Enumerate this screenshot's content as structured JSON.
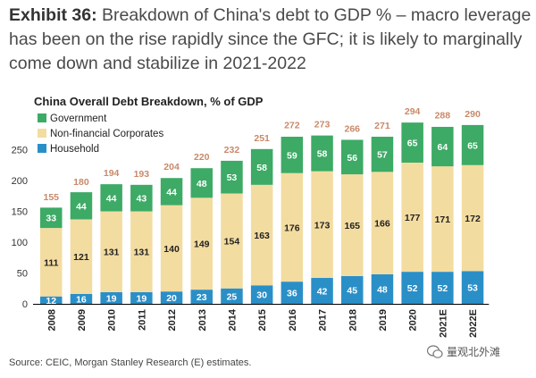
{
  "heading": {
    "label": "Exhibit 36:",
    "line1": "Breakdown of China's debt to GDP % – macro leverage",
    "line2": "has been on the rise rapidly since the GFC; it is likely to marginally",
    "line3": "come down and stabilize in 2021-2022"
  },
  "source": "Source: CEIC, Morgan Stanley Research (E) estimates.",
  "watermark": "量观北外滩",
  "chart_data": {
    "type": "bar",
    "stacked": true,
    "title": "China Overall Debt Breakdown, % of GDP",
    "categories": [
      "2008",
      "2009",
      "2010",
      "2011",
      "2012",
      "2013",
      "2014",
      "2015",
      "2016",
      "2017",
      "2018",
      "2019",
      "2020",
      "2021E",
      "2022E"
    ],
    "series": [
      {
        "name": "Household",
        "color": "#2a8fc7",
        "values": [
          12,
          16,
          19,
          19,
          20,
          23,
          25,
          30,
          36,
          42,
          45,
          48,
          52,
          52,
          53
        ]
      },
      {
        "name": "Non-financial Corporates",
        "color": "#f3dca0",
        "values": [
          111,
          121,
          131,
          131,
          140,
          149,
          154,
          163,
          176,
          173,
          165,
          166,
          177,
          171,
          172
        ]
      },
      {
        "name": "Government",
        "color": "#3daa66",
        "values": [
          33,
          44,
          44,
          43,
          44,
          48,
          53,
          58,
          59,
          58,
          56,
          57,
          65,
          64,
          65
        ]
      }
    ],
    "totals": [
      155,
      180,
      194,
      193,
      204,
      220,
      232,
      251,
      272,
      273,
      266,
      271,
      294,
      288,
      290
    ],
    "ylim": [
      0,
      300
    ],
    "yticks": [
      0,
      50,
      100,
      150,
      200,
      250
    ],
    "legend_position": "top-left",
    "legend_order": [
      "Government",
      "Non-financial Corporates",
      "Household"
    ],
    "total_label_color": "#c8896a",
    "grid": false
  }
}
